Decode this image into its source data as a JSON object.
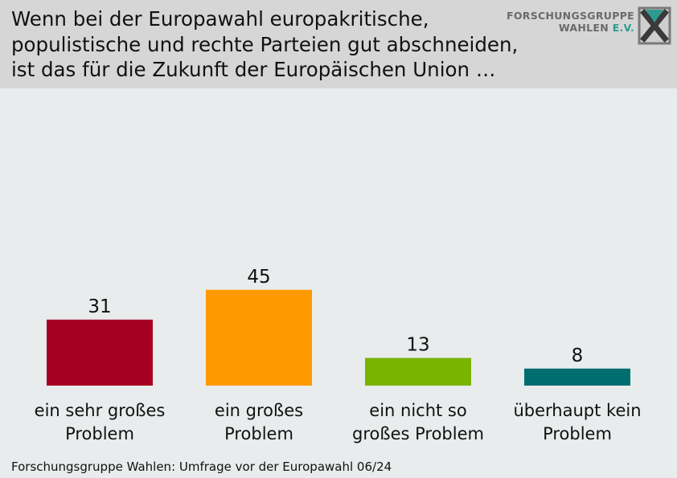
{
  "header": {
    "title_lines": [
      "Wenn bei der Europawahl europakritische,",
      "populistische und rechte Parteien gut abschneiden,",
      "ist das für die Zukunft der Europäischen Union …"
    ],
    "logo": {
      "line1": "FORSCHUNGSGRUPPE",
      "line2_main": "WAHLEN ",
      "line2_accent": "E.V."
    }
  },
  "chart_data": {
    "type": "bar",
    "categories": [
      [
        "ein sehr großes",
        "Problem"
      ],
      [
        "ein großes",
        "Problem"
      ],
      [
        "ein nicht so",
        "großes Problem"
      ],
      [
        "überhaupt kein",
        "Problem"
      ]
    ],
    "values": [
      31,
      45,
      13,
      8
    ],
    "colors": [
      "#a50021",
      "#ff9900",
      "#78b400",
      "#006e6e"
    ],
    "ylim": [
      0,
      100
    ],
    "grid": false,
    "legend": "none"
  },
  "footer": {
    "source": "Forschungsgruppe Wahlen: Umfrage vor der Europawahl 06/24"
  }
}
